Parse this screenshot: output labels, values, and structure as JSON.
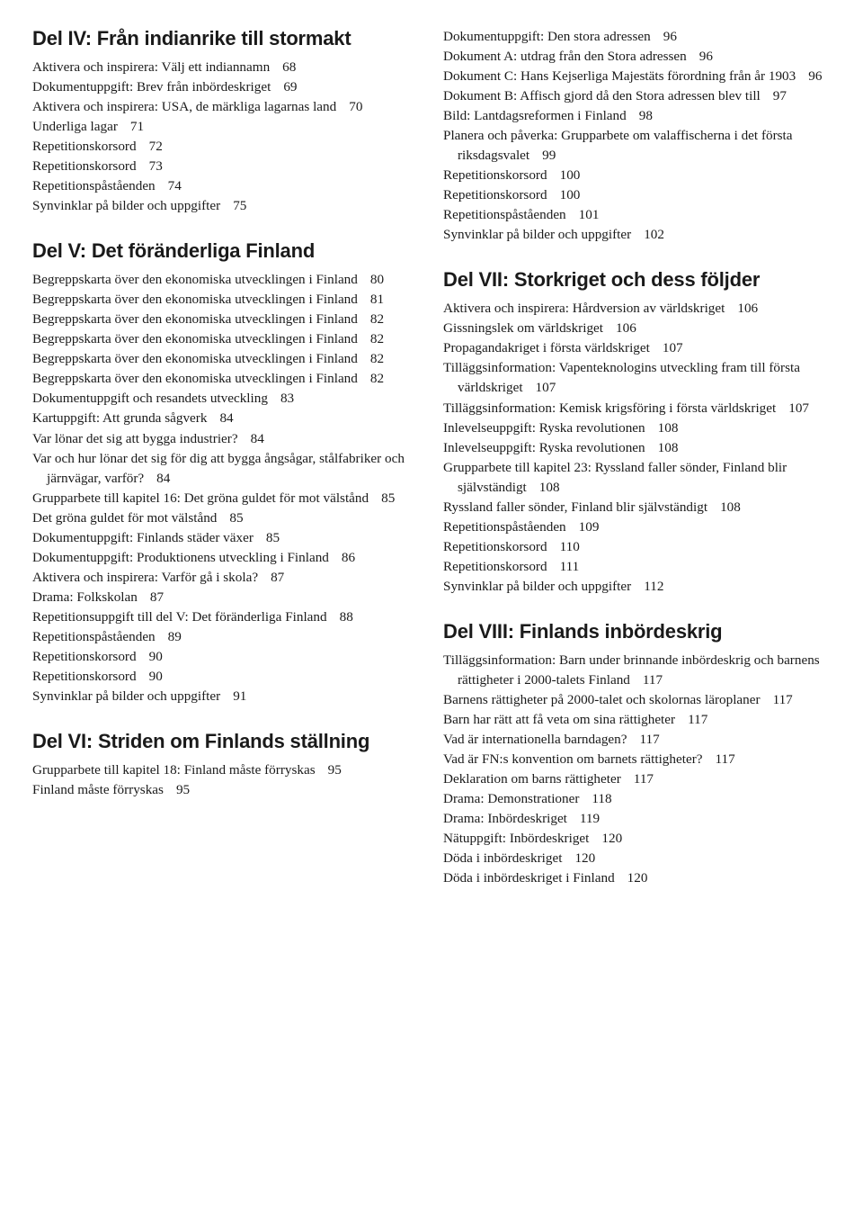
{
  "leftColumn": [
    {
      "heading": "Del IV: Från indianrike till stormakt",
      "entries": [
        {
          "text": "Aktivera och inspirera: Välj ett indiannamn",
          "page": "68"
        },
        {
          "text": "Dokumentuppgift: Brev från inbördeskriget",
          "page": "69"
        },
        {
          "text": "Aktivera och inspirera: USA, de märkliga lagarnas land",
          "page": "70"
        },
        {
          "text": "Underliga lagar",
          "page": "71"
        },
        {
          "text": "Repetitionskorsord",
          "page": "72"
        },
        {
          "text": "Repetitionskorsord",
          "page": "73"
        },
        {
          "text": "Repetitionspåståenden",
          "page": "74"
        },
        {
          "text": "Synvinklar på bilder och uppgifter",
          "page": "75"
        }
      ]
    },
    {
      "heading": "Del V: Det föränderliga Finland",
      "entries": [
        {
          "text": "Begreppskarta över den ekonomiska utvecklingen i Finland",
          "page": "80"
        },
        {
          "text": "Begreppskarta över den ekonomiska utvecklingen i Finland",
          "page": "81"
        },
        {
          "text": "Begreppskarta över den ekonomiska utvecklingen i Finland",
          "page": "82"
        },
        {
          "text": "Begreppskarta över den ekonomiska utvecklingen i Finland",
          "page": "82"
        },
        {
          "text": "Begreppskarta över den ekonomiska utvecklingen i Finland",
          "page": "82"
        },
        {
          "text": "Begreppskarta över den ekonomiska utvecklingen i Finland",
          "page": "82"
        },
        {
          "text": "Dokumentuppgift och resandets utveckling",
          "page": "83"
        },
        {
          "text": "Kartuppgift: Att grunda sågverk",
          "page": "84"
        },
        {
          "text": "Var lönar det sig att bygga industrier?",
          "page": "84"
        },
        {
          "text": "Var och hur lönar det sig för dig att bygga ångsågar, stålfabriker och järnvägar, varför?",
          "page": "84"
        },
        {
          "text": "Grupparbete till kapitel 16: Det gröna guldet för mot välstånd",
          "page": "85"
        },
        {
          "text": "Det gröna guldet för mot välstånd",
          "page": "85"
        },
        {
          "text": "Dokumentuppgift: Finlands städer växer",
          "page": "85"
        },
        {
          "text": "Dokumentuppgift: Produktionens utveckling i Finland",
          "page": "86"
        },
        {
          "text": "Aktivera och inspirera: Varför gå i skola?",
          "page": "87"
        },
        {
          "text": "Drama: Folkskolan",
          "page": "87"
        },
        {
          "text": "Repetitionsuppgift till del V: Det föränderliga Finland",
          "page": "88"
        },
        {
          "text": "Repetitionspåståenden",
          "page": "89"
        },
        {
          "text": "Repetitionskorsord",
          "page": "90"
        },
        {
          "text": "Repetitionskorsord",
          "page": "90"
        },
        {
          "text": "Synvinklar på bilder och uppgifter",
          "page": "91"
        }
      ]
    },
    {
      "heading": "Del VI: Striden om Finlands ställning",
      "entries": [
        {
          "text": "Grupparbete till kapitel 18: Finland måste förryskas",
          "page": "95"
        },
        {
          "text": "Finland måste förryskas",
          "page": "95"
        }
      ]
    }
  ],
  "rightColumn": [
    {
      "heading": null,
      "entries": [
        {
          "text": "Dokumentuppgift: Den stora adressen",
          "page": "96"
        },
        {
          "text": "Dokument A: utdrag från den Stora adressen",
          "page": "96"
        },
        {
          "text": "Dokument C: Hans Kejserliga Majestäts förordning från år 1903",
          "page": "96"
        },
        {
          "text": "Dokument B: Affisch gjord då den Stora adressen blev till",
          "page": "97"
        },
        {
          "text": "Bild: Lantdagsreformen i Finland",
          "page": "98"
        },
        {
          "text": "Planera och påverka: Grupparbete om valaffischerna i det första riksdagsvalet",
          "page": "99"
        },
        {
          "text": "Repetitionskorsord",
          "page": "100"
        },
        {
          "text": "Repetitionskorsord",
          "page": "100"
        },
        {
          "text": "Repetitionspåståenden",
          "page": "101"
        },
        {
          "text": "Synvinklar på bilder och uppgifter",
          "page": "102"
        }
      ]
    },
    {
      "heading": "Del VII: Storkriget och dess följder",
      "entries": [
        {
          "text": "Aktivera och inspirera:  Hårdversion av världskriget",
          "page": "106"
        },
        {
          "text": "Gissningslek om världskriget",
          "page": "106"
        },
        {
          "text": "Propagandakriget i första världskriget",
          "page": "107"
        },
        {
          "text": "Tilläggsinformation: Vapenteknologins utveckling fram till första världskriget",
          "page": "107"
        },
        {
          "text": "Tilläggsinformation: Kemisk krigsföring i första världskriget",
          "page": "107"
        },
        {
          "text": "Inlevelseuppgift: Ryska revolutionen",
          "page": "108"
        },
        {
          "text": "Inlevelseuppgift: Ryska revolutionen",
          "page": "108"
        },
        {
          "text": "Grupparbete till kapitel 23: Ryssland faller sönder, Finland blir självständigt",
          "page": "108"
        },
        {
          "text": "Ryssland faller sönder, Finland blir självständigt",
          "page": "108"
        },
        {
          "text": "Repetitionspåståenden",
          "page": "109"
        },
        {
          "text": "Repetitionskorsord",
          "page": "110"
        },
        {
          "text": "Repetitionskorsord",
          "page": "111"
        },
        {
          "text": "Synvinklar på bilder och uppgifter",
          "page": "112"
        }
      ]
    },
    {
      "heading": "Del VIII: Finlands inbördeskrig",
      "entries": [
        {
          "text": "Tilläggsinformation: Barn under brinnande inbördeskrig och barnens rättigheter i 2000-talets Finland",
          "page": "117"
        },
        {
          "text": "Barnens rättigheter på 2000-talet och skolornas läroplaner",
          "page": "117"
        },
        {
          "text": "Barn har rätt att få veta om sina rättigheter",
          "page": "117"
        },
        {
          "text": "Vad är internationella barndagen?",
          "page": "117"
        },
        {
          "text": "Vad är FN:s konvention om barnets rättigheter?",
          "page": "117"
        },
        {
          "text": "Deklaration om barns rättigheter",
          "page": "117"
        },
        {
          "text": "Drama: Demonstrationer",
          "page": "118"
        },
        {
          "text": "Drama: Inbördeskriget",
          "page": "119"
        },
        {
          "text": "Nätuppgift: Inbördeskriget",
          "page": "120"
        },
        {
          "text": "Döda i inbördeskriget",
          "page": "120"
        },
        {
          "text": "Döda i inbördeskriget i Finland",
          "page": "120"
        }
      ]
    }
  ]
}
